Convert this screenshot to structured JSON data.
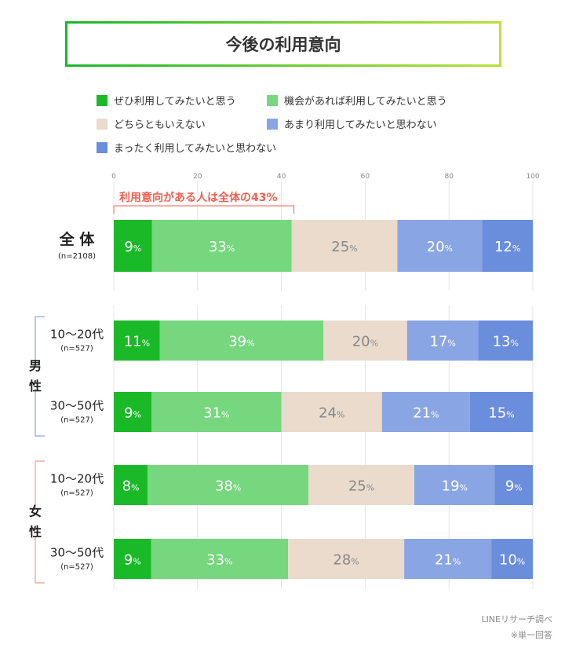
{
  "chart_data": {
    "type": "bar",
    "orientation": "horizontal-stacked",
    "title": "今後の利用意向",
    "xlim": [
      0,
      100
    ],
    "xticks": [
      0,
      20,
      40,
      60,
      80,
      100
    ],
    "grid": true,
    "legend_position": "top",
    "series": [
      {
        "name": "ぜひ利用してみたいと思う",
        "color": "#1ab928",
        "label_color": "#ffffff"
      },
      {
        "name": "機会があれば利用してみたいと思う",
        "color": "#76d77e",
        "label_color": "#ffffff"
      },
      {
        "name": "どちらともいえない",
        "color": "#eadbcd",
        "label_color": "#888888"
      },
      {
        "name": "あまり利用してみたいと思わない",
        "color": "#8aa5e3",
        "label_color": "#ffffff"
      },
      {
        "name": "まったく利用してみたいと思わない",
        "color": "#6a8ddc",
        "label_color": "#ffffff"
      }
    ],
    "rows": [
      {
        "label": "全 体",
        "n": "(n=2108)",
        "values": [
          9,
          33,
          25,
          20,
          12
        ]
      },
      {
        "label": "10〜20代",
        "n": "(n=527)",
        "group": "男性",
        "values": [
          11,
          39,
          20,
          17,
          13
        ]
      },
      {
        "label": "30〜50代",
        "n": "(n=527)",
        "group": "男性",
        "values": [
          9,
          31,
          24,
          21,
          15
        ]
      },
      {
        "label": "10〜20代",
        "n": "(n=527)",
        "group": "女性",
        "values": [
          8,
          38,
          25,
          19,
          9
        ]
      },
      {
        "label": "30〜50代",
        "n": "(n=527)",
        "group": "女性",
        "values": [
          9,
          33,
          28,
          21,
          10
        ]
      }
    ],
    "groups": [
      {
        "label": "男\n性",
        "color": "#8aa5e3"
      },
      {
        "label": "女\n性",
        "color": "#f0a090"
      }
    ],
    "annotation": {
      "text": "利用意向がある人は全体の43%",
      "value": 43,
      "color": "#f06050"
    }
  },
  "footer": {
    "source": "LINEリサーチ調べ",
    "note": "※単一回答"
  }
}
